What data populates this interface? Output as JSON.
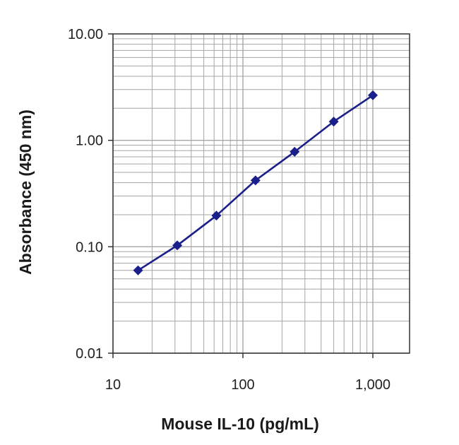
{
  "chart_data": {
    "type": "line",
    "title": "",
    "xlabel": "Mouse IL-10 (pg/mL)",
    "ylabel": "Absorbance (450 nm)",
    "x_scale": "log",
    "y_scale": "log",
    "xlim": [
      10,
      1000
    ],
    "ylim": [
      0.01,
      10
    ],
    "x_tick_values": [
      10,
      100,
      1000
    ],
    "x_tick_labels": [
      "10",
      "100",
      "1,000"
    ],
    "y_tick_values": [
      0.01,
      0.1,
      1,
      10
    ],
    "y_tick_labels": [
      "0.01",
      "0.10",
      "1.00",
      "10.00"
    ],
    "grid": true,
    "legend": "none",
    "series": [
      {
        "color": "#1a1f8c",
        "marker": "diamond",
        "x": [
          15.6,
          31.25,
          62.5,
          125,
          250,
          500,
          1000
        ],
        "y": [
          0.06,
          0.103,
          0.196,
          0.42,
          0.78,
          1.5,
          2.65
        ]
      }
    ],
    "colors": {
      "line": "#1a1f8c",
      "grid": "#a6a6a6",
      "axis": "#333333"
    }
  }
}
